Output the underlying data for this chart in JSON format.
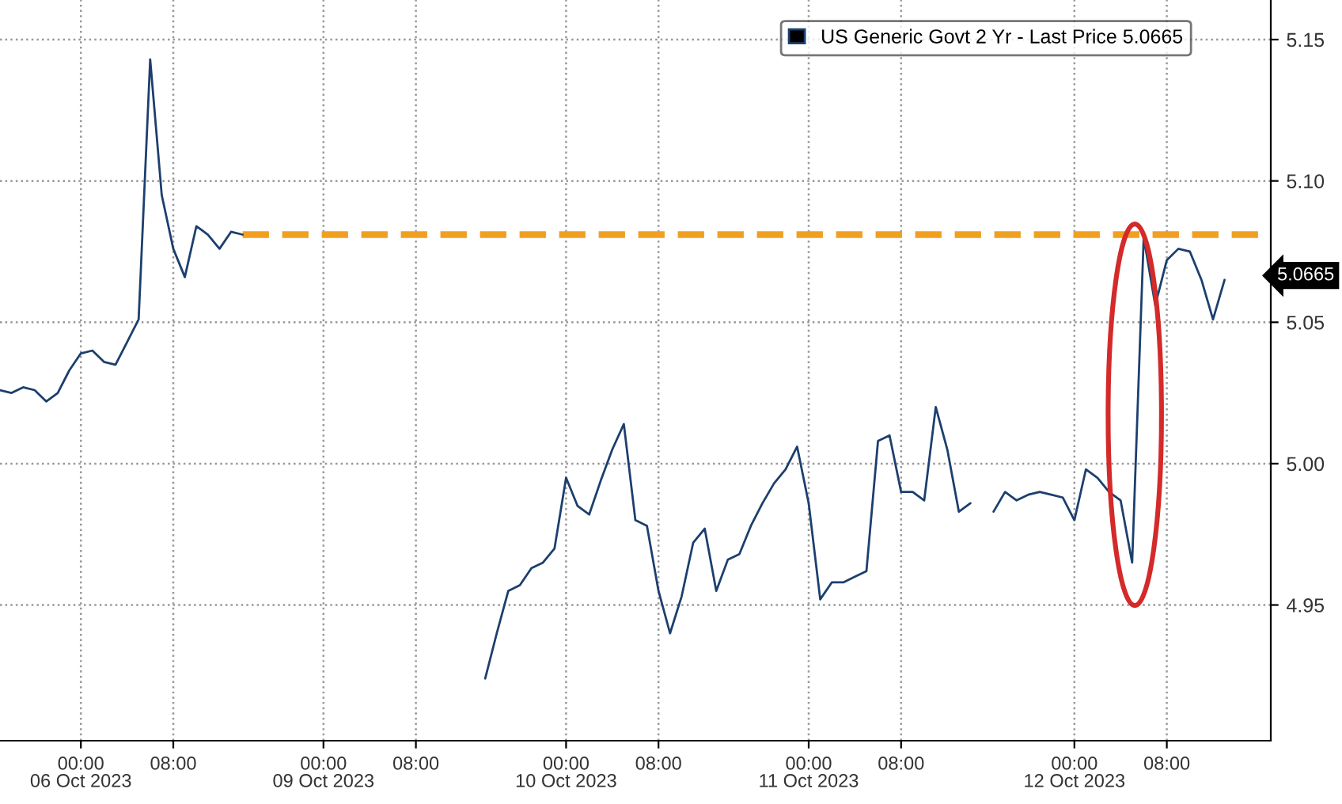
{
  "chart_data": {
    "type": "line",
    "categories": [
      null,
      null,
      null,
      null,
      null,
      null,
      null,
      "00:00\n06 Oct 2023",
      null,
      null,
      null,
      null,
      null,
      null,
      null,
      "08:00",
      null,
      null,
      null,
      null,
      null,
      null,
      null,
      null,
      null,
      null,
      null,
      null,
      "00:00\n09 Oct 2023",
      null,
      null,
      null,
      null,
      null,
      null,
      null,
      "08:00",
      null,
      null,
      null,
      null,
      null,
      null,
      null,
      null,
      null,
      null,
      null,
      null,
      "00:00\n10 Oct 2023",
      null,
      null,
      null,
      null,
      null,
      null,
      null,
      "08:00",
      null,
      null,
      null,
      null,
      null,
      null,
      null,
      null,
      null,
      null,
      null,
      null,
      "00:00\n11 Oct 2023",
      null,
      null,
      null,
      null,
      null,
      null,
      null,
      "08:00",
      null,
      null,
      null,
      null,
      null,
      null,
      null,
      null,
      null,
      null,
      null,
      null,
      null,
      null,
      "00:00\n12 Oct 2023",
      null,
      null,
      null,
      null,
      null,
      null,
      null,
      "08:00",
      null,
      null,
      null,
      null,
      null,
      null,
      null,
      null,
      null
    ],
    "series": [
      {
        "name": "US Generic Govt 2 Yr - Last Price 5.0665",
        "color": "#1c3f6e",
        "line_style": "solid",
        "values": [
          5.026,
          5.025,
          5.027,
          5.026,
          5.022,
          5.025,
          5.033,
          5.039,
          5.04,
          5.036,
          5.035,
          5.043,
          5.051,
          5.143,
          5.095,
          5.076,
          5.066,
          5.084,
          5.081,
          5.076,
          5.082,
          5.081,
          null,
          null,
          null,
          null,
          null,
          null,
          null,
          null,
          null,
          null,
          null,
          null,
          null,
          null,
          null,
          null,
          null,
          null,
          null,
          null,
          4.924,
          4.94,
          4.955,
          4.957,
          4.963,
          4.965,
          4.97,
          4.995,
          4.985,
          4.982,
          4.994,
          5.005,
          5.014,
          4.98,
          4.978,
          4.955,
          4.94,
          4.953,
          4.972,
          4.977,
          4.955,
          4.966,
          4.968,
          4.978,
          4.986,
          4.993,
          4.998,
          5.006,
          4.986,
          4.952,
          4.958,
          4.958,
          4.96,
          4.962,
          5.008,
          5.01,
          4.99,
          4.99,
          4.987,
          5.02,
          5.005,
          4.983,
          4.986,
          null,
          4.983,
          4.99,
          4.987,
          4.989,
          4.99,
          4.989,
          4.988,
          4.98,
          4.998,
          4.995,
          4.99,
          4.987,
          4.965,
          5.08,
          5.056,
          5.072,
          5.076,
          5.075,
          5.065,
          5.051,
          5.065,
          null,
          null,
          null,
          null
        ]
      },
      {
        "color": "#f0a020",
        "line_style": "dashed",
        "values": [
          null,
          null,
          null,
          null,
          null,
          null,
          null,
          null,
          null,
          null,
          null,
          null,
          null,
          null,
          null,
          null,
          null,
          null,
          null,
          null,
          null,
          5.081,
          5.081,
          5.081,
          5.081,
          5.081,
          5.081,
          5.081,
          5.081,
          5.081,
          5.081,
          5.081,
          5.081,
          5.081,
          5.081,
          5.081,
          5.081,
          5.081,
          5.081,
          5.081,
          5.081,
          5.081,
          5.081,
          5.081,
          5.081,
          5.081,
          5.081,
          5.081,
          5.081,
          5.081,
          5.081,
          5.081,
          5.081,
          5.081,
          5.081,
          5.081,
          5.081,
          5.081,
          5.081,
          5.081,
          5.081,
          5.081,
          5.081,
          5.081,
          5.081,
          5.081,
          5.081,
          5.081,
          5.081,
          5.081,
          5.081,
          5.081,
          5.081,
          5.081,
          5.081,
          5.081,
          5.081,
          5.081,
          5.081,
          5.081,
          5.081,
          5.081,
          5.081,
          5.081,
          5.081,
          5.081,
          5.081,
          5.081,
          5.081,
          5.081,
          5.081,
          5.081,
          5.081,
          5.081,
          5.081,
          5.081,
          5.081,
          5.081,
          5.081,
          5.081,
          5.081,
          5.081,
          5.081,
          5.081,
          5.081,
          5.081,
          5.081,
          5.081,
          5.081,
          5.081,
          5.081
        ]
      }
    ],
    "ylim": [
      4.902,
      5.164
    ],
    "yticks": [
      4.95,
      {
        "value": 5.0,
        "label": "5.00"
      },
      5.05,
      {
        "value": 5.1,
        "label": "5.10"
      },
      5.15
    ],
    "grid": true,
    "legend": "top right",
    "annotations": [
      "5.0665"
    ]
  }
}
